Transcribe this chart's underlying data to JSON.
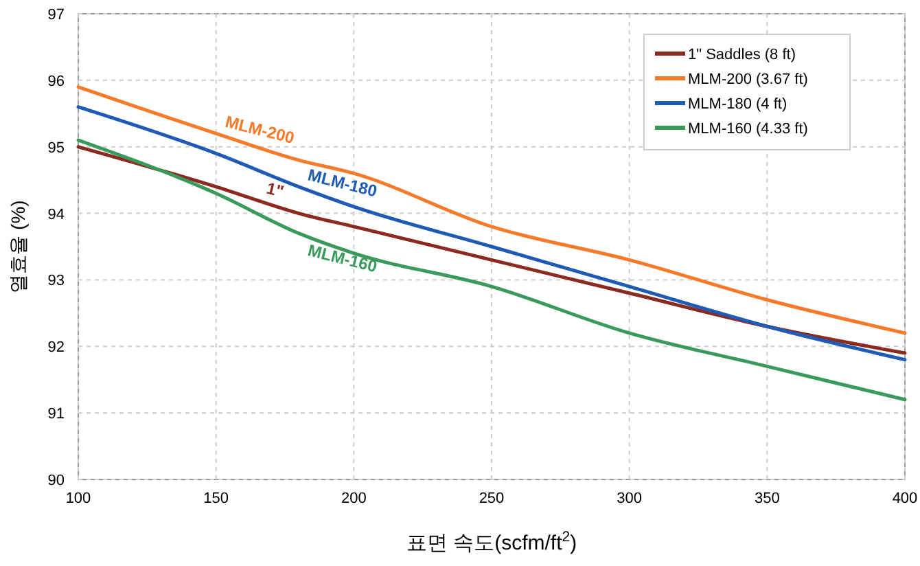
{
  "chart_data": {
    "type": "line",
    "xlabel": "표면 속도(scfm/ft$^{2}$)",
    "ylabel": "열효율 (%)",
    "x": [
      100,
      150,
      180,
      200,
      250,
      300,
      350,
      400
    ],
    "series": [
      {
        "name": "1\" Saddles (8 ft)",
        "color": "#8b2a1e",
        "values": [
          95.0,
          94.4,
          94.0,
          93.8,
          93.3,
          92.8,
          92.3,
          91.9
        ]
      },
      {
        "name": "MLM-200 (3.67 ft)",
        "color": "#f57a2a",
        "values": [
          95.9,
          95.2,
          94.8,
          94.6,
          93.8,
          93.3,
          92.7,
          92.2
        ]
      },
      {
        "name": "MLM-180 (4 ft)",
        "color": "#1f5bb5",
        "values": [
          95.6,
          94.9,
          94.4,
          94.1,
          93.5,
          92.9,
          92.3,
          91.8
        ]
      },
      {
        "name": "MLM-160 (4.33 ft)",
        "color": "#3a9a5c",
        "values": [
          95.1,
          94.3,
          93.7,
          93.4,
          92.9,
          92.2,
          91.7,
          91.2
        ]
      }
    ],
    "annotations": [
      {
        "text": "MLM-200",
        "x": 150,
        "y": 95.2
      },
      {
        "text": "MLM-180",
        "x": 180,
        "y": 94.4
      },
      {
        "text": "1\"",
        "x": 165,
        "y": 94.2
      },
      {
        "text": "MLM-160",
        "x": 180,
        "y": 93.7
      }
    ],
    "xlim": [
      100,
      400
    ],
    "ylim": [
      90,
      97
    ],
    "xticks": [
      100,
      150,
      200,
      250,
      300,
      350,
      400
    ],
    "yticks": [
      90,
      91,
      92,
      93,
      94,
      95,
      96,
      97
    ],
    "grid": true,
    "legend": "top right",
    "marker": "none",
    "line_style": "solid"
  }
}
